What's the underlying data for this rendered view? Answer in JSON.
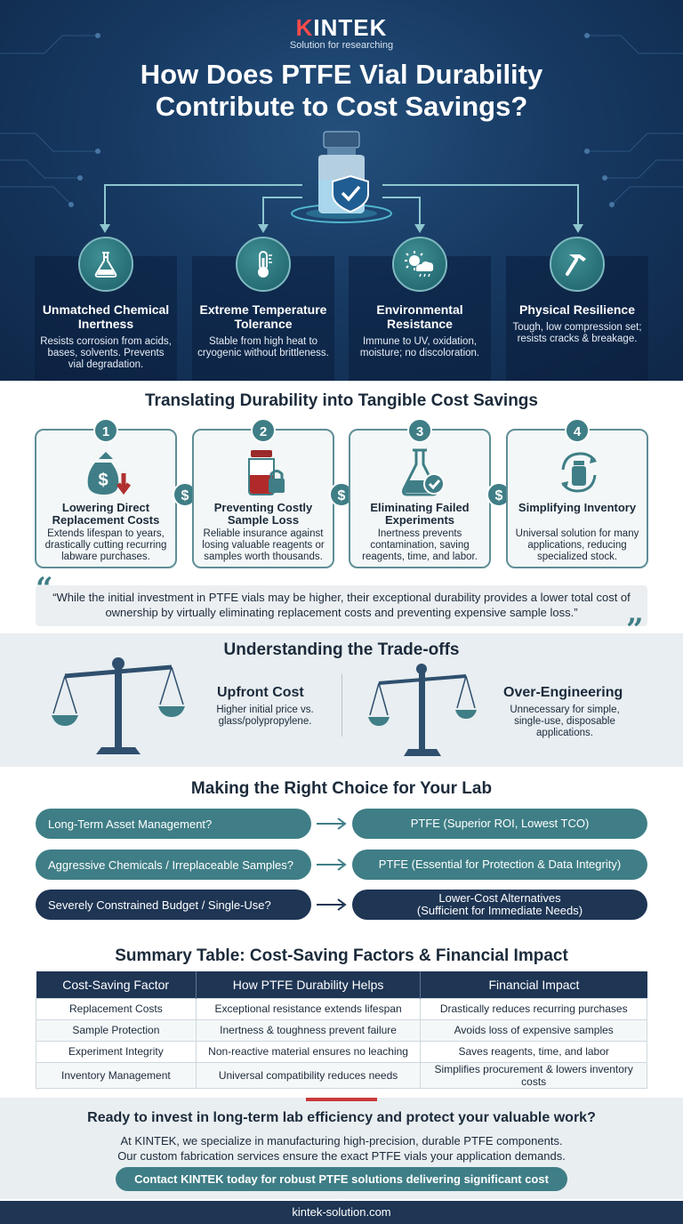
{
  "brand": {
    "logo_accent": "K",
    "logo_rest": "INTEK",
    "tagline": "Solution for researching"
  },
  "header": {
    "title_line1": "How Does PTFE Vial Durability",
    "title_line2": "Contribute to Cost Savings?"
  },
  "features": [
    {
      "icon": "flask-icon",
      "title": "Unmatched Chemical Inertness",
      "desc": "Resists corrosion from acids, bases, solvents. Prevents vial degradation."
    },
    {
      "icon": "thermometer-icon",
      "title": "Extreme Temperature Tolerance",
      "desc": "Stable from high heat to cryogenic without brittleness."
    },
    {
      "icon": "weather-icon",
      "title": "Environmental Resistance",
      "desc": "Immune to UV, oxidation, moisture; no discoloration."
    },
    {
      "icon": "hammer-icon",
      "title": "Physical Resilience",
      "desc": "Tough, low compression set; resists cracks & breakage."
    }
  ],
  "savings": {
    "title": "Translating Durability into Tangible Cost Savings",
    "steps": [
      {
        "num": "1",
        "title": "Lowering Direct Replacement Costs",
        "desc": "Extends lifespan to years, drastically cutting recurring labware purchases."
      },
      {
        "num": "2",
        "title": "Preventing Costly Sample Loss",
        "desc": "Reliable insurance against losing valuable reagents or samples worth thousands."
      },
      {
        "num": "3",
        "title": "Eliminating Failed Experiments",
        "desc": "Inertness prevents contamination, saving reagents, time, and labor."
      },
      {
        "num": "4",
        "title": "Simplifying Inventory",
        "desc": "Universal solution for many applications, reducing specialized stock."
      }
    ],
    "dollar_symbol": "$"
  },
  "quote": {
    "open": "“",
    "close": "”",
    "text": "“While the initial investment in PTFE vials may be higher, their exceptional durability provides a lower total cost of ownership by virtually eliminating replacement costs and preventing expensive sample loss.”"
  },
  "tradeoffs": {
    "title": "Understanding the Trade-offs",
    "items": [
      {
        "title": "Upfront Cost",
        "desc": "Higher initial price vs. glass/polypropylene."
      },
      {
        "title": "Over-Engineering",
        "desc": "Unnecessary for simple, single-use, disposable applications."
      }
    ]
  },
  "choice": {
    "title": "Making the Right Choice for Your Lab",
    "rows": [
      {
        "q": "Long-Term Asset Management?",
        "a": "PTFE (Superior ROI, Lowest TCO)"
      },
      {
        "q": "Aggressive Chemicals / Irreplaceable Samples?",
        "a": "PTFE (Essential for Protection & Data Integrity)"
      },
      {
        "q": "Severely Constrained Budget / Single-Use?",
        "a1": "Lower-Cost Alternatives",
        "a2": "(Sufficient for Immediate Needs)"
      }
    ]
  },
  "table": {
    "title": "Summary Table: Cost-Saving Factors & Financial Impact",
    "headers": [
      "Cost-Saving Factor",
      "How PTFE Durability Helps",
      "Financial Impact"
    ],
    "rows": [
      [
        "Replacement Costs",
        "Exceptional resistance extends lifespan",
        "Drastically reduces recurring purchases"
      ],
      [
        "Sample Protection",
        "Inertness & toughness prevent failure",
        "Avoids loss of expensive samples"
      ],
      [
        "Experiment Integrity",
        "Non-reactive material ensures no leaching",
        "Saves reagents, time, and labor"
      ],
      [
        "Inventory Management",
        "Universal compatibility reduces needs",
        "Simplifies procurement & lowers inventory costs"
      ]
    ]
  },
  "cta": {
    "title": "Ready to invest in long-term lab efficiency and protect your valuable work?",
    "line1": "At KINTEK, we specialize in manufacturing high-precision, durable PTFE components.",
    "line2": "Our custom fabrication services ensure the exact PTFE vials your application demands.",
    "button": "Contact KINTEK today for robust PTFE solutions delivering significant cost savings."
  },
  "footer": {
    "url": "kintek-solution.com"
  },
  "colors": {
    "teal": "#3f7e86",
    "navy": "#1e3554",
    "accent_red": "#ff4b4b"
  }
}
